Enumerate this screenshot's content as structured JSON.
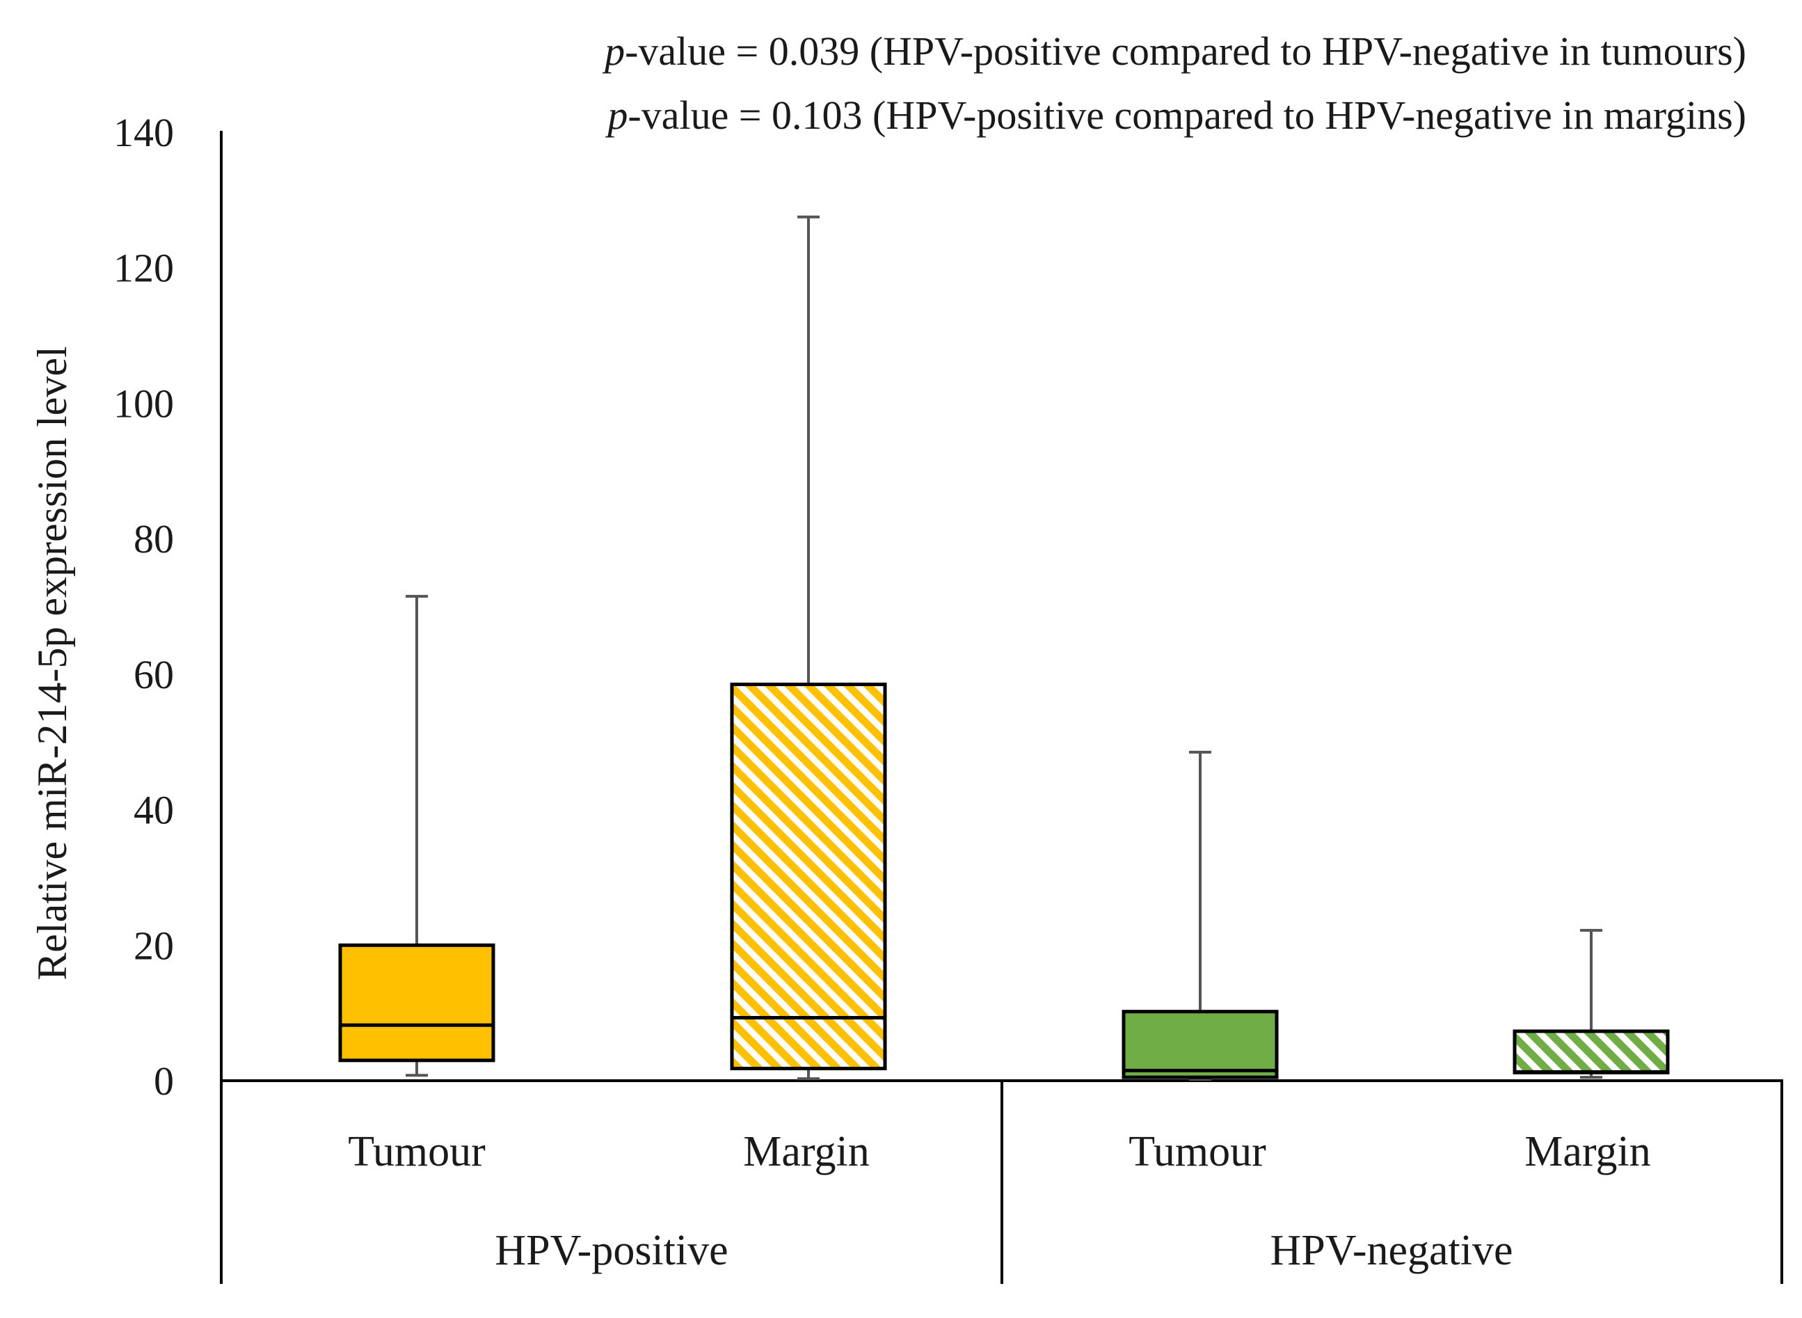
{
  "annotations": [
    {
      "italic": "p",
      "text": "-value = 0.039 (HPV-positive compared to HPV-negative in tumours)"
    },
    {
      "italic": "p",
      "text": "-value = 0.103 (HPV-positive compared to HPV-negative in margins)"
    }
  ],
  "chart_data": {
    "type": "box",
    "ylabel": "Relative miR-214-5p expression level",
    "ylim": [
      0,
      140
    ],
    "yticks": [
      0,
      20,
      40,
      60,
      80,
      100,
      120,
      140
    ],
    "grid": false,
    "legend": "none",
    "groups": [
      {
        "label": "HPV-positive",
        "categories": [
          "Tumour",
          "Margin"
        ]
      },
      {
        "label": "HPV-negative",
        "categories": [
          "Tumour",
          "Margin"
        ]
      }
    ],
    "boxes": [
      {
        "group": "HPV-positive",
        "category": "Tumour",
        "min": 0.8,
        "q1": 3,
        "median": 8.2,
        "q3": 20,
        "max": 71.5,
        "color": "#FFC000",
        "pattern": "solid"
      },
      {
        "group": "HPV-positive",
        "category": "Margin",
        "min": 0.3,
        "q1": 1.8,
        "median": 9.3,
        "q3": 58.5,
        "max": 127.5,
        "color": "#FFC000",
        "pattern": "hatched"
      },
      {
        "group": "HPV-negative",
        "category": "Tumour",
        "min": 0.2,
        "q1": 0.5,
        "median": 1.5,
        "q3": 10.2,
        "max": 48.5,
        "color": "#70AD47",
        "pattern": "solid"
      },
      {
        "group": "HPV-negative",
        "category": "Margin",
        "min": 0.5,
        "q1": 1.2,
        "median": 1.3,
        "q3": 7.3,
        "max": 22.2,
        "color": "#70AD47",
        "pattern": "hatched"
      }
    ]
  }
}
